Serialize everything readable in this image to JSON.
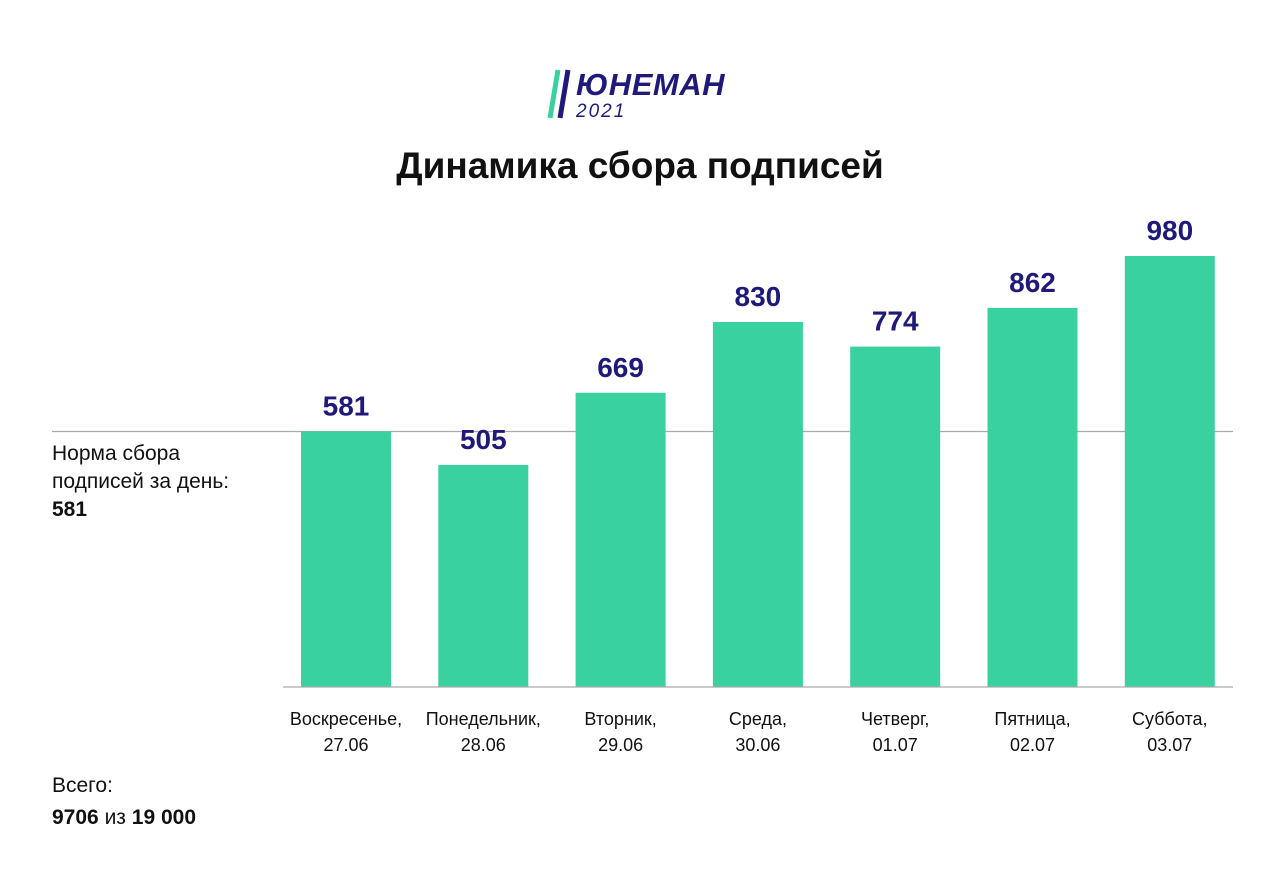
{
  "logo": {
    "name": "ЮНЕМАН",
    "year": "2021",
    "stripe_color": "#3ad1a0",
    "text_color": "#1f1a7a"
  },
  "title": "Динамика сбора подписей",
  "norm": {
    "label_line1": "Норма сбора",
    "label_line2": "подписей за день:",
    "value": "581"
  },
  "total": {
    "label": "Всего:",
    "collected": "9706",
    "connector": "из",
    "target": "19 000"
  },
  "colors": {
    "bar": "#3ad1a0",
    "value_label": "#1f1a7a",
    "axis": "#aaaaaa"
  },
  "chart_data": {
    "type": "bar",
    "title": "Динамика сбора подписей",
    "categories": [
      [
        "Воскресенье,",
        "27.06"
      ],
      [
        "Понедельник,",
        "28.06"
      ],
      [
        "Вторник,",
        "29.06"
      ],
      [
        "Среда,",
        "30.06"
      ],
      [
        "Четверг,",
        "01.07"
      ],
      [
        "Пятница,",
        "02.07"
      ],
      [
        "Суббота,",
        "03.07"
      ]
    ],
    "values": [
      581,
      505,
      669,
      830,
      774,
      862,
      980
    ],
    "reference_line": 581,
    "ylim": [
      0,
      980
    ],
    "grid": false,
    "legend": "none"
  }
}
